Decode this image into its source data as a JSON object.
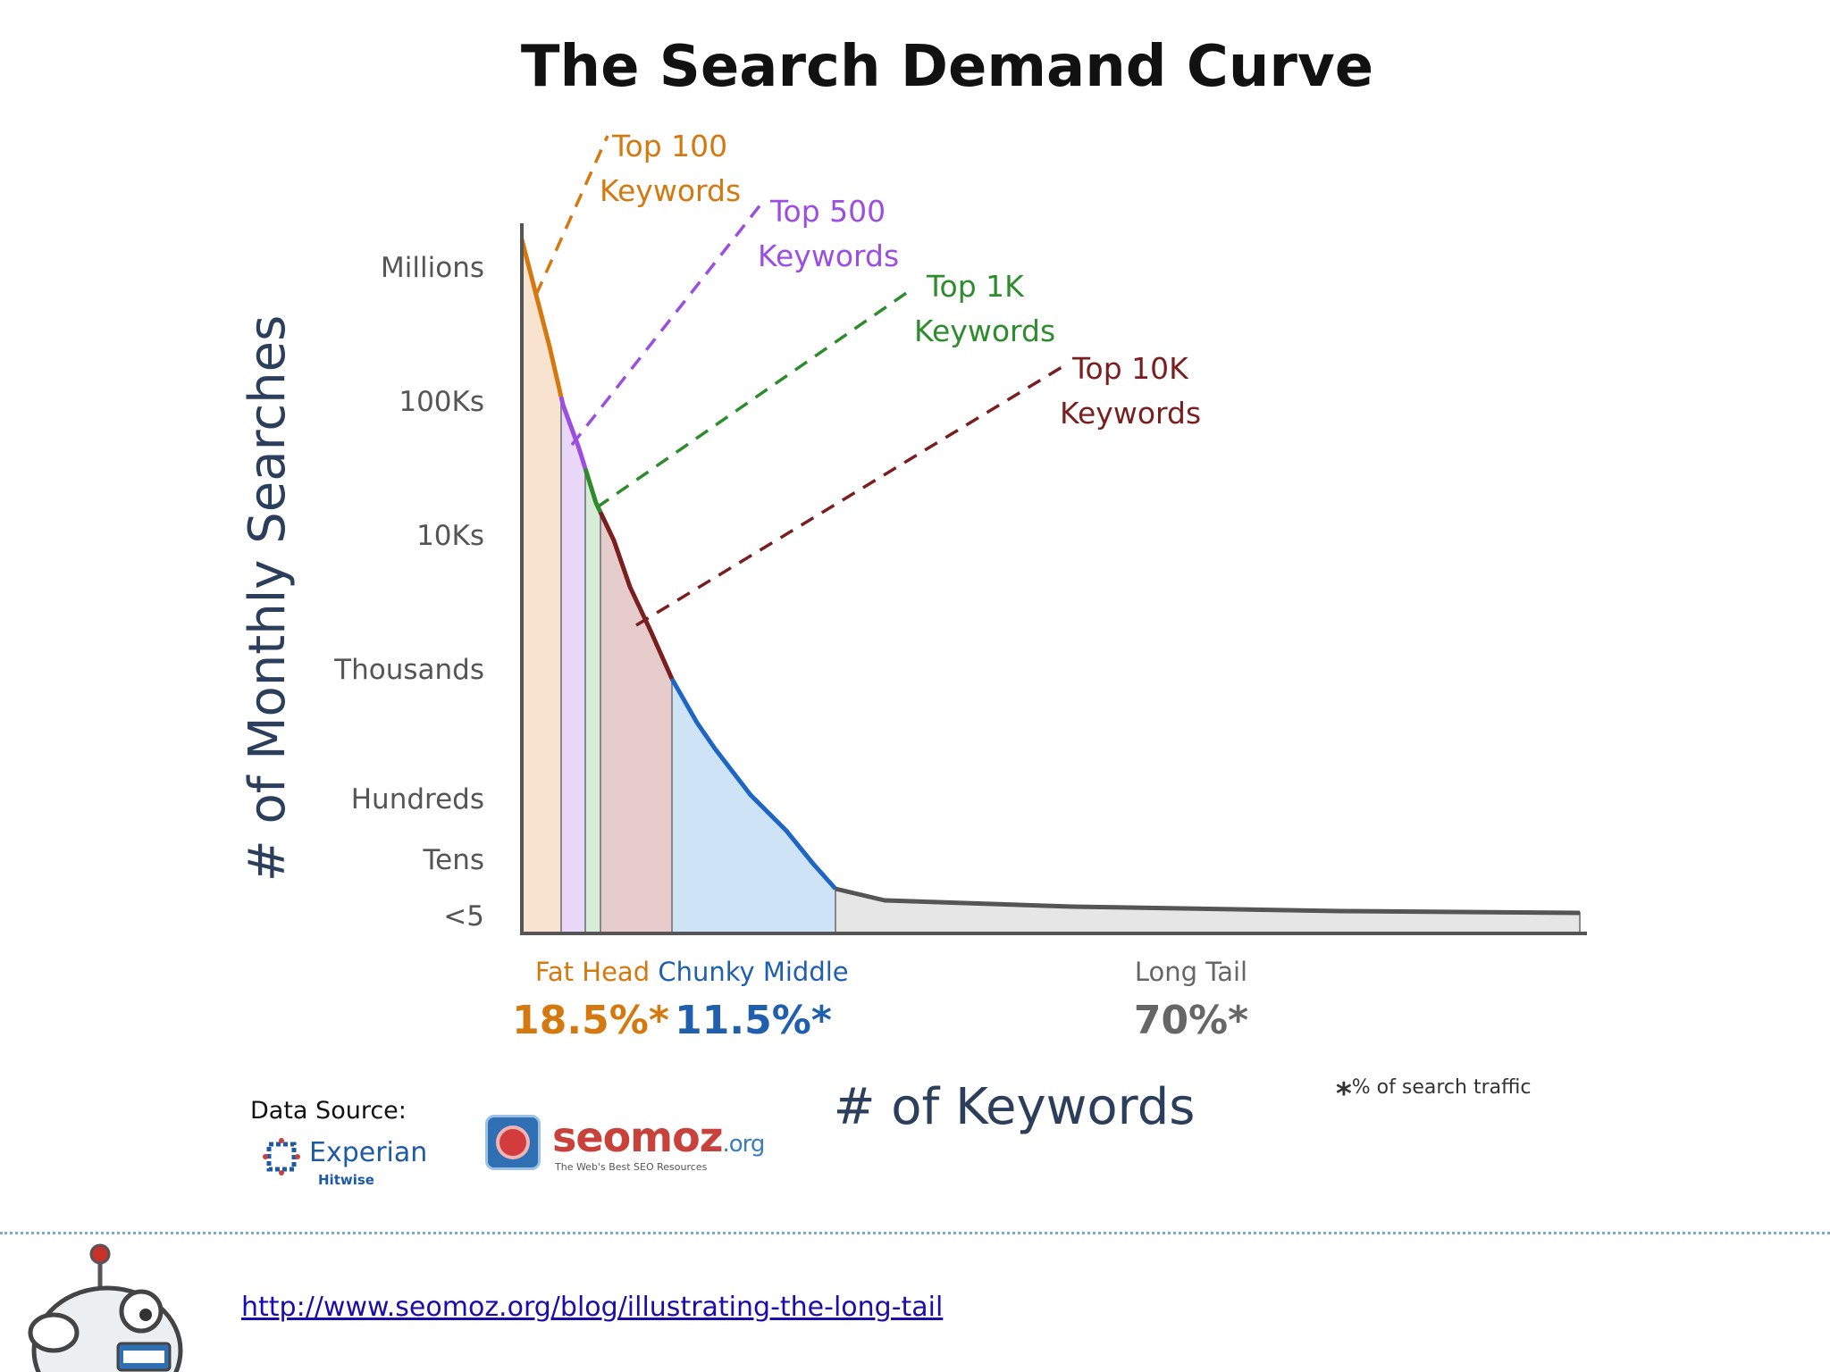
{
  "chart_data": {
    "type": "area",
    "title": "The Search Demand Curve",
    "xlabel": "# of Keywords",
    "ylabel": "# of Monthly Searches",
    "y_tick_labels": [
      "Millions",
      "100Ks",
      "10Ks",
      "Thousands",
      "Hundreds",
      "Tens",
      "<5"
    ],
    "y_scale": "log",
    "grid": false,
    "keyword_thresholds": [
      {
        "label_line1": "Top 100",
        "label_line2": "Keywords",
        "color": "#d4790f"
      },
      {
        "label_line1": "Top 500",
        "label_line2": "Keywords",
        "color": "#9b4ee0"
      },
      {
        "label_line1": "Top 1K",
        "label_line2": "Keywords",
        "color": "#2e8b2e"
      },
      {
        "label_line1": "Top 10K",
        "label_line2": "Keywords",
        "color": "#7a1f1f"
      }
    ],
    "segments": [
      {
        "name": "Fat Head",
        "share": "18.5%*",
        "share_value": 18.5,
        "color": "#d4790f"
      },
      {
        "name": "Chunky Middle",
        "share": "11.5%*",
        "share_value": 11.5,
        "color": "#1f5fae"
      },
      {
        "name": "Long Tail",
        "share": "70%*",
        "share_value": 70,
        "color": "#666666"
      }
    ]
  },
  "footnote": {
    "symbol": "*",
    "text": "% of search traffic"
  },
  "data_source": {
    "label": "Data Source:",
    "brand": "Experian",
    "brand_sub": "Hitwise"
  },
  "seomoz": {
    "name": "seomoz",
    "tld": ".org",
    "tagline": "The Web's Best SEO Resources"
  },
  "source_url": "http://www.seomoz.org/blog/illustrating-the-long-tail"
}
